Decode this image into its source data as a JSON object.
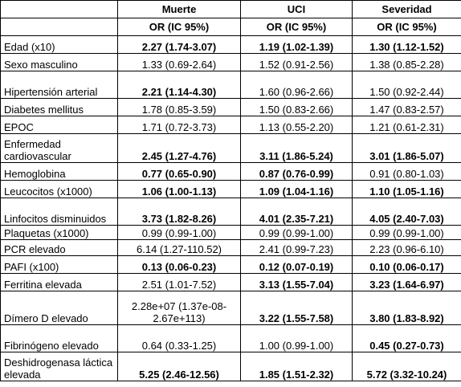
{
  "headers": [
    "",
    "Muerte",
    "UCI",
    "Severidad"
  ],
  "subheader": [
    "",
    "OR (IC 95%)",
    "OR (IC 95%)",
    "OR (IC 95%)"
  ],
  "rows": [
    {
      "label": "Edad (x10)",
      "cells": [
        {
          "text": "2.27 (1.74-3.07)",
          "bold": true
        },
        {
          "text": "1.19 (1.02-1.39)",
          "bold": true
        },
        {
          "text": "1.30 (1.12-1.52)",
          "bold": true
        }
      ]
    },
    {
      "label": "Sexo masculino",
      "cells": [
        {
          "text": "1.33 (0.69-2.64)",
          "bold": false
        },
        {
          "text": "1.52 (0.91-2.56)",
          "bold": false
        },
        {
          "text": "1.38 (0.85-2.28)",
          "bold": false
        }
      ]
    },
    {
      "label": "Hipertensión arterial",
      "cells": [
        {
          "text": "2.21 (1.14-4.30)",
          "bold": true
        },
        {
          "text": "1.60 (0.96-2.66)",
          "bold": false
        },
        {
          "text": "1.50 (0.92-2.44)",
          "bold": false
        }
      ]
    },
    {
      "label": "Diabetes mellitus",
      "cells": [
        {
          "text": "1.78 (0.85-3.59)",
          "bold": false
        },
        {
          "text": "1.50 (0.83-2.66)",
          "bold": false
        },
        {
          "text": "1.47 (0.83-2.57)",
          "bold": false
        }
      ]
    },
    {
      "label": "EPOC",
      "cells": [
        {
          "text": "1.71 (0.72-3.73)",
          "bold": false
        },
        {
          "text": "1.13 (0.55-2.20)",
          "bold": false
        },
        {
          "text": "1.21 (0.61-2.31)",
          "bold": false
        }
      ]
    },
    {
      "label": "Enfermedad cardiovascular",
      "cells": [
        {
          "text": "2.45 (1.27-4.76)",
          "bold": true
        },
        {
          "text": "3.11 (1.86-5.24)",
          "bold": true
        },
        {
          "text": "3.01 (1.86-5.07)",
          "bold": true
        }
      ]
    },
    {
      "label": "Hemoglobina",
      "cells": [
        {
          "text": "0.77 (0.65-0.90)",
          "bold": true
        },
        {
          "text": "0.87 (0.76-0.99)",
          "bold": true
        },
        {
          "text": "0.91 (0.80-1.03)",
          "bold": false
        }
      ]
    },
    {
      "label": "Leucocitos (x1000)",
      "cells": [
        {
          "text": "1.06 (1.00-1.13)",
          "bold": true
        },
        {
          "text": "1.09 (1.04-1.16)",
          "bold": true
        },
        {
          "text": "1.10 (1.05-1.16)",
          "bold": true
        }
      ]
    },
    {
      "label": "Linfocitos disminuidos",
      "cells": [
        {
          "text": "3.73 (1.82-8.26)",
          "bold": true
        },
        {
          "text": "4.01 (2.35-7.21)",
          "bold": true
        },
        {
          "text": "4.05 (2.40-7.03)",
          "bold": true
        }
      ]
    },
    {
      "label": "Plaquetas (x1000)",
      "cells": [
        {
          "text": "0.99 (0.99-1.00)",
          "bold": false
        },
        {
          "text": "0.99 (0.99-1.00)",
          "bold": false
        },
        {
          "text": "0.99 (0.99-1.00)",
          "bold": false
        }
      ]
    },
    {
      "label": "PCR elevado",
      "cells": [
        {
          "text": "6.14 (1.27-110.52)",
          "bold": false
        },
        {
          "text": "2.41 (0.99-7.23)",
          "bold": false
        },
        {
          "text": "2.23 (0.96-6.10)",
          "bold": false
        }
      ]
    },
    {
      "label": "PAFI (x100)",
      "cells": [
        {
          "text": "0.13 (0.06-0.23)",
          "bold": true
        },
        {
          "text": "0.12 (0.07-0.19)",
          "bold": true
        },
        {
          "text": "0.10 (0.06-0.17)",
          "bold": true
        }
      ]
    },
    {
      "label": "Ferritina elevada",
      "cells": [
        {
          "text": "2.51 (1.01-7.52)",
          "bold": false
        },
        {
          "text": "3.13 (1.55-7.04)",
          "bold": true
        },
        {
          "text": "3.23 (1.64-6.97)",
          "bold": true
        }
      ]
    },
    {
      "label": "Dímero D elevado",
      "cells": [
        {
          "text": "2.28e+07 (1.37e-08-2.67e+113)",
          "bold": false
        },
        {
          "text": "3.22 (1.55-7.58)",
          "bold": true
        },
        {
          "text": "3.80 (1.83-8.92)",
          "bold": true
        }
      ]
    },
    {
      "label": "Fibrinógeno elevado",
      "cells": [
        {
          "text": "0.64 (0.33-1.25)",
          "bold": false
        },
        {
          "text": "1.00 (0.99-1.00)",
          "bold": false
        },
        {
          "text": "0.45 (0.27-0.73)",
          "bold": true
        }
      ]
    },
    {
      "label": "Deshidrogenasa láctica elevada",
      "cells": [
        {
          "text": "5.25 (2.46-12.56)",
          "bold": true
        },
        {
          "text": "1.85 (1.51-2.32)",
          "bold": true
        },
        {
          "text": "5.72 (3.32-10.24)",
          "bold": true
        }
      ]
    }
  ]
}
